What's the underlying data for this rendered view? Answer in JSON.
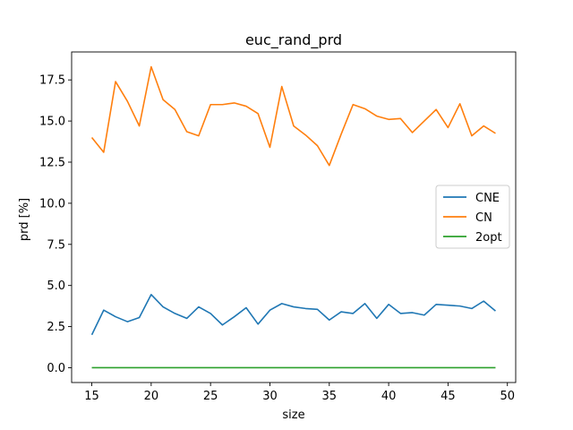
{
  "chart_data": {
    "type": "line",
    "title": "euc_rand_prd",
    "xlabel": "size",
    "ylabel": "prd [%]",
    "xlim": [
      13.3,
      50.7
    ],
    "ylim": [
      -0.9,
      19.2
    ],
    "x_ticks": [
      15,
      20,
      25,
      30,
      35,
      40,
      45,
      50
    ],
    "y_ticks": [
      0.0,
      2.5,
      5.0,
      7.5,
      10.0,
      12.5,
      15.0,
      17.5
    ],
    "y_tick_labels": [
      "0.0",
      "2.5",
      "5.0",
      "7.5",
      "10.0",
      "12.5",
      "15.0",
      "17.5"
    ],
    "grid": false,
    "legend_position": "center-right",
    "x": [
      15,
      16,
      17,
      18,
      19,
      20,
      21,
      22,
      23,
      24,
      25,
      26,
      27,
      28,
      29,
      30,
      31,
      32,
      33,
      34,
      35,
      36,
      37,
      38,
      39,
      40,
      41,
      42,
      43,
      44,
      45,
      46,
      47,
      48,
      49
    ],
    "series": [
      {
        "name": "CNE",
        "color": "#1f77b4",
        "values": [
          2.0,
          3.5,
          3.1,
          2.8,
          3.05,
          4.45,
          3.7,
          3.3,
          3.0,
          3.7,
          3.3,
          2.6,
          3.1,
          3.65,
          2.65,
          3.5,
          3.9,
          3.7,
          3.6,
          3.55,
          2.9,
          3.4,
          3.3,
          3.9,
          3.0,
          3.85,
          3.3,
          3.35,
          3.2,
          3.85,
          3.8,
          3.75,
          3.6,
          4.05,
          3.45
        ]
      },
      {
        "name": "CN",
        "color": "#ff7f0e",
        "values": [
          14.0,
          13.1,
          17.4,
          16.2,
          14.7,
          18.3,
          16.3,
          15.7,
          14.35,
          14.1,
          16.0,
          16.0,
          16.1,
          15.9,
          15.45,
          13.4,
          17.1,
          14.7,
          14.15,
          13.5,
          12.3,
          14.2,
          16.0,
          15.75,
          15.3,
          15.1,
          15.15,
          14.3,
          15.0,
          15.7,
          14.6,
          16.05,
          14.1,
          14.7,
          14.25
        ]
      },
      {
        "name": "2opt",
        "color": "#2ca02c",
        "values": [
          0,
          0,
          0,
          0,
          0,
          0,
          0,
          0,
          0,
          0,
          0,
          0,
          0,
          0,
          0,
          0,
          0,
          0,
          0,
          0,
          0,
          0,
          0,
          0,
          0,
          0,
          0,
          0,
          0,
          0,
          0,
          0,
          0,
          0,
          0
        ]
      }
    ]
  }
}
